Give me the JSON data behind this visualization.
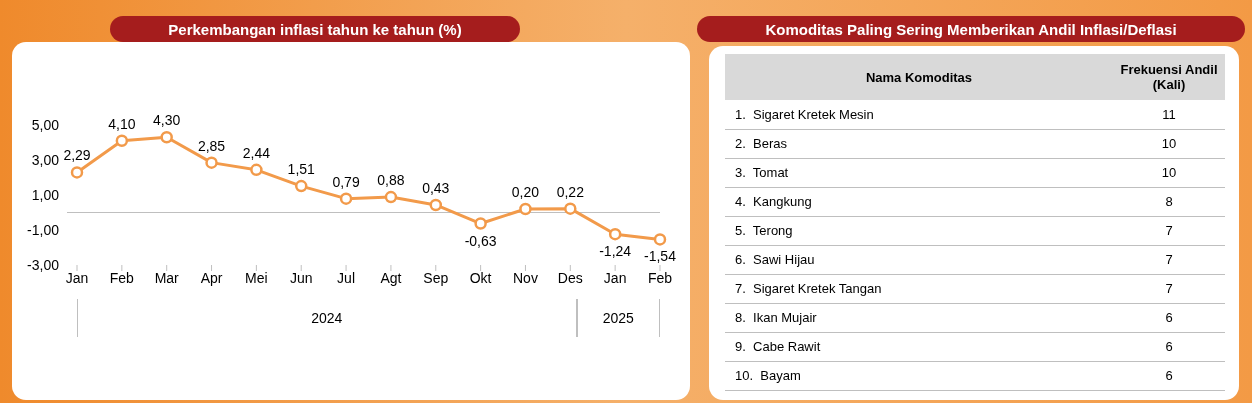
{
  "chart_data": [
    {
      "type": "line",
      "title": "Perkembangan inflasi tahun ke tahun (%)",
      "categories": [
        "Jan",
        "Feb",
        "Mar",
        "Apr",
        "Mei",
        "Jun",
        "Jul",
        "Agt",
        "Sep",
        "Okt",
        "Nov",
        "Des",
        "Jan",
        "Feb"
      ],
      "series": [
        {
          "color": "#f29a4a",
          "values": [
            2.29,
            4.1,
            4.3,
            2.85,
            2.44,
            1.51,
            0.79,
            0.88,
            0.43,
            -0.63,
            0.2,
            0.22,
            -1.24,
            -1.54
          ]
        }
      ],
      "ylim": [
        -3,
        5
      ],
      "yticks": [
        {
          "value": -3,
          "label": "-3,00"
        },
        {
          "value": -1,
          "label": "-1,00"
        },
        {
          "value": 1,
          "label": "1,00"
        },
        {
          "value": 3,
          "label": "3,00"
        },
        {
          "value": 5,
          "label": "5,00"
        }
      ],
      "value_labels": [
        "2,29",
        "4,10",
        "4,30",
        "2,85",
        "2,44",
        "1,51",
        "0,79",
        "0,88",
        "0,43",
        "-0,63",
        "0,20",
        "0,22",
        "-1,24",
        "-1,54"
      ],
      "ref_lines": [
        {
          "axis": "y",
          "value": 0,
          "color": "#bfbfbf"
        }
      ],
      "annotations": [
        "2024",
        "2025"
      ],
      "marker": "circle",
      "line_style": "solid",
      "grid": false,
      "legend": false
    },
    {
      "type": "other",
      "title": "Komoditas Paling Sering Memberikan Andil Inflasi/Deflasi",
      "xlabel": "Nama Komoditas",
      "ylabel": "Frekuensi Andil (Kali)",
      "categories": [
        "1.  Sigaret Kretek Mesin",
        "2.  Beras",
        "3.  Tomat",
        "4.  Kangkung",
        "5.  Terong",
        "6.  Sawi Hijau",
        "7.  Sigaret Kretek Tangan",
        "8.  Ikan Mujair",
        "9.  Cabe Rawit",
        "10.  Bayam"
      ],
      "values": [
        11,
        10,
        10,
        8,
        7,
        7,
        7,
        6,
        6,
        6
      ],
      "data_labels": true
    }
  ]
}
